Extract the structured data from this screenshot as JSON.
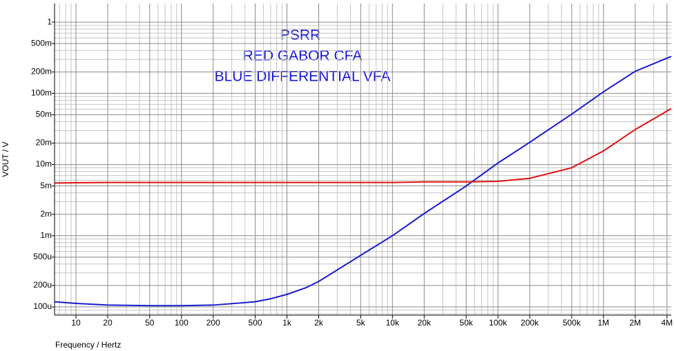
{
  "chart_data": {
    "type": "line",
    "annotations": [
      "PSRR",
      "RED GABOR CFA",
      "BLUE DIFFERENTIAL VFA"
    ],
    "x_label": "Frequency / Hertz",
    "y_label": "VOUT / V",
    "log_x": true,
    "log_y": true,
    "grid": true,
    "x": [
      6.27,
      10,
      20,
      50,
      100,
      200,
      500,
      700,
      1000,
      1500,
      2000,
      5000,
      10000,
      20000,
      50000,
      100000,
      200000,
      500000,
      1000000,
      2000000,
      4390000
    ],
    "series": [
      {
        "name": "BLUE DIFFERENTIAL VFA",
        "color": "#1a1ad0",
        "values": [
          0.000118,
          0.000112,
          0.000106,
          0.000104,
          0.000104,
          0.000106,
          0.000118,
          0.00013,
          0.00015,
          0.000185,
          0.000228,
          0.00053,
          0.001,
          0.00205,
          0.005,
          0.0105,
          0.0205,
          0.051,
          0.105,
          0.204,
          0.33
        ]
      },
      {
        "name": "RED GABOR CFA",
        "color": "#e01010",
        "values": [
          0.0055,
          0.00555,
          0.0056,
          0.0056,
          0.0056,
          0.0056,
          0.0056,
          0.0056,
          0.0056,
          0.0056,
          0.0056,
          0.0056,
          0.0056,
          0.0057,
          0.0057,
          0.0058,
          0.0064,
          0.009,
          0.0155,
          0.031,
          0.061
        ]
      }
    ],
    "xlim": [
      6.27,
      4390000
    ],
    "ylim": [
      7.66e-05,
      1.83
    ],
    "xticks": [
      10,
      20,
      50,
      100,
      200,
      500,
      {
        "value": 1000,
        "label": "1k"
      },
      {
        "value": 2000,
        "label": "2k"
      },
      {
        "value": 5000,
        "label": "5k"
      },
      {
        "value": 10000,
        "label": "10k"
      },
      {
        "value": 20000,
        "label": "20k"
      },
      {
        "value": 50000,
        "label": "50k"
      },
      {
        "value": 100000,
        "label": "100k"
      },
      {
        "value": 200000,
        "label": "200k"
      },
      {
        "value": 500000,
        "label": "500k"
      },
      {
        "value": 1000000,
        "label": "1M"
      },
      {
        "value": 2000000,
        "label": "2M"
      },
      {
        "value": 4000000,
        "label": "4M"
      }
    ],
    "yticks": [
      1,
      {
        "value": 0.5,
        "label": "500m"
      },
      {
        "value": 0.2,
        "label": "200m"
      },
      {
        "value": 0.1,
        "label": "100m"
      },
      {
        "value": 0.05,
        "label": "50m"
      },
      {
        "value": 0.02,
        "label": "20m"
      },
      {
        "value": 0.01,
        "label": "10m"
      },
      {
        "value": 0.005,
        "label": "5m"
      },
      {
        "value": 0.002,
        "label": "2m"
      },
      {
        "value": 0.001,
        "label": "1m"
      },
      {
        "value": 0.0005,
        "label": "500u"
      },
      {
        "value": 0.0002,
        "label": "200u"
      },
      {
        "value": 0.0001,
        "label": "100u"
      }
    ],
    "xminorticks": [
      7,
      8,
      9,
      30,
      40,
      60,
      70,
      80,
      90,
      300,
      400,
      600,
      700,
      800,
      900,
      3000,
      4000,
      6000,
      7000,
      8000,
      9000,
      30000,
      40000,
      60000,
      70000,
      80000,
      90000,
      300000,
      400000,
      600000,
      700000,
      800000,
      900000,
      3000000
    ],
    "yminorticks": [
      8e-05,
      9e-05,
      0.0003,
      0.0004,
      0.0006,
      0.0007,
      0.0008,
      0.0009,
      0.003,
      0.004,
      0.006,
      0.007,
      0.008,
      0.009,
      0.03,
      0.04,
      0.06,
      0.07,
      0.08,
      0.09,
      0.3,
      0.4,
      0.6,
      0.7,
      0.8,
      0.9
    ]
  }
}
